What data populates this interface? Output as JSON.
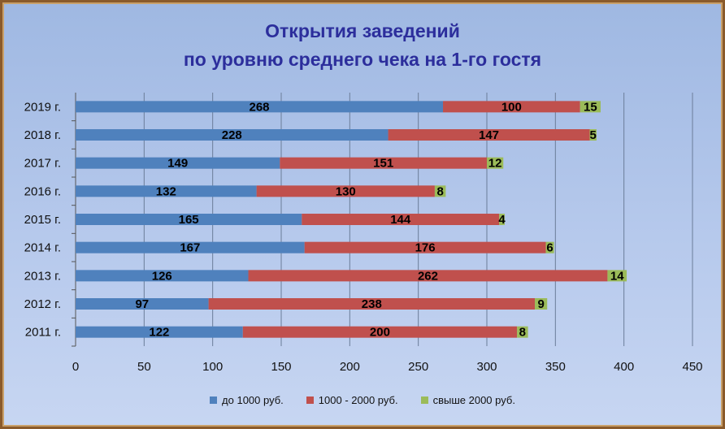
{
  "chart_data": {
    "type": "bar",
    "orientation": "horizontal",
    "stacked": true,
    "title_lines": [
      "Открытия заведений",
      "по уровню среднего чека на 1-го гостя"
    ],
    "categories": [
      "2011 г.",
      "2012 г.",
      "2013 г.",
      "2014 г.",
      "2015 г.",
      "2016 г.",
      "2017 г.",
      "2018 г.",
      "2019 г."
    ],
    "series": [
      {
        "name": "до 1000 руб.",
        "color": "#4f81bd",
        "values": [
          122,
          97,
          126,
          167,
          165,
          132,
          149,
          228,
          268
        ]
      },
      {
        "name": "1000 - 2000 руб.",
        "color": "#c0504d",
        "values": [
          200,
          238,
          262,
          176,
          144,
          130,
          151,
          147,
          100
        ]
      },
      {
        "name": "свыше 2000 руб.",
        "color": "#9bbb59",
        "values": [
          8,
          9,
          14,
          6,
          4,
          8,
          12,
          5,
          15
        ]
      }
    ],
    "x_ticks": [
      "0",
      "50",
      "100",
      "150",
      "200",
      "250",
      "300",
      "350",
      "400",
      "450"
    ],
    "xlim": [
      0,
      450
    ],
    "grid": true,
    "legend_position": "bottom"
  }
}
